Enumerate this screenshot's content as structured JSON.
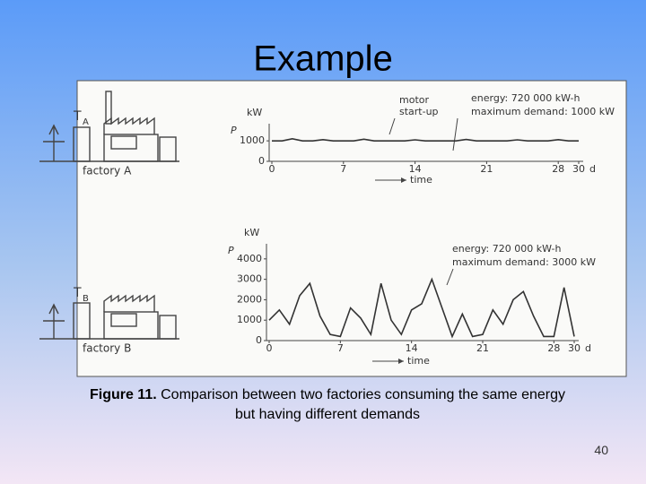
{
  "title": "Example",
  "figure": {
    "factory_a": {
      "label": "factory A",
      "tag": "T",
      "tag_sub": "A"
    },
    "factory_b": {
      "label": "factory B",
      "tag": "T",
      "tag_sub": "B"
    }
  },
  "chart_data": [
    {
      "type": "line",
      "color": "#333333",
      "ylabel": "P",
      "yunit": "kW",
      "xlabel": "time",
      "xunit": "d",
      "annotations": [
        "motor",
        "start-up",
        "energy: 720 000 kW-h",
        "maximum demand: 1000 kW"
      ],
      "x": [
        0,
        1,
        2,
        3,
        4,
        5,
        6,
        7,
        8,
        9,
        10,
        11,
        12,
        13,
        14,
        15,
        16,
        17,
        18,
        19,
        20,
        21,
        22,
        23,
        24,
        25,
        26,
        27,
        28,
        29,
        30
      ],
      "values": [
        1000,
        1000,
        1100,
        1000,
        1000,
        1060,
        1000,
        1000,
        1000,
        1080,
        1000,
        1000,
        1000,
        1000,
        1050,
        1000,
        1000,
        1000,
        1000,
        1070,
        1000,
        1000,
        1000,
        1000,
        1050,
        1000,
        1000,
        1000,
        1060,
        1000,
        1000
      ],
      "xlim": [
        0,
        30
      ],
      "xticks": [
        0,
        7,
        14,
        21,
        28,
        30
      ],
      "ylim": [
        0,
        1400
      ],
      "yticks": [
        0,
        1000
      ]
    },
    {
      "type": "line",
      "color": "#333333",
      "ylabel": "P",
      "yunit": "kW",
      "xlabel": "time",
      "xunit": "d",
      "annotations": [
        "energy: 720 000 kW-h",
        "maximum demand: 3000 kW"
      ],
      "x": [
        0,
        1,
        2,
        3,
        4,
        5,
        6,
        7,
        8,
        9,
        10,
        11,
        12,
        13,
        14,
        15,
        16,
        17,
        18,
        19,
        20,
        21,
        22,
        23,
        24,
        25,
        26,
        27,
        28,
        29,
        30
      ],
      "values": [
        1000,
        1500,
        800,
        2200,
        2800,
        1200,
        300,
        200,
        1600,
        1100,
        300,
        2800,
        1000,
        300,
        1500,
        1800,
        3000,
        1600,
        200,
        1300,
        200,
        300,
        1500,
        800,
        2000,
        2400,
        1200,
        200,
        200,
        2600,
        200
      ],
      "xlim": [
        0,
        30
      ],
      "xticks": [
        0,
        7,
        14,
        21,
        28,
        30
      ],
      "ylim": [
        0,
        4300
      ],
      "yticks": [
        0,
        1000,
        2000,
        3000,
        4000
      ]
    }
  ],
  "caption": {
    "label": "Figure 11.",
    "text": "Comparison between two factories consuming the same energy but having different demands"
  },
  "page_number": "40"
}
